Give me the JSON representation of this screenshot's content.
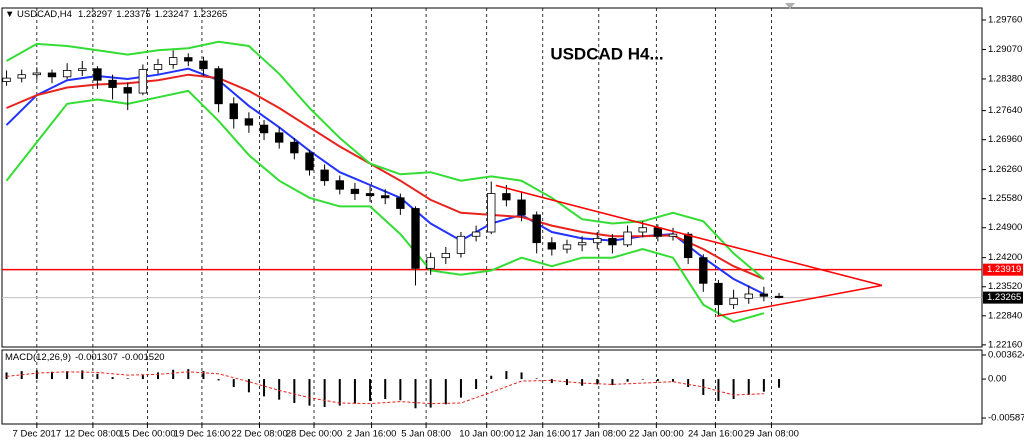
{
  "chart_data": [
    {
      "type": "candlestick",
      "symbol": "USDCAD,H4",
      "annotation": "USDCAD H4...",
      "xlim": [
        -0.3,
        64.4
      ],
      "ylim": [
        1.2211,
        1.3004
      ],
      "yticks": [
        {
          "value": 1.2976,
          "label": "1.29760"
        },
        {
          "value": 1.2907,
          "label": "1.29070"
        },
        {
          "value": 1.2838,
          "label": "1.28380"
        },
        {
          "value": 1.2764,
          "label": "1.27640"
        },
        {
          "value": 1.2696,
          "label": "1.26960"
        },
        {
          "value": 1.2626,
          "label": "1.26260"
        },
        {
          "value": 1.2558,
          "label": "1.25580"
        },
        {
          "value": 1.249,
          "label": "1.24900"
        },
        {
          "value": 1.242,
          "label": "1.24200"
        },
        {
          "value": 1.2352,
          "label": "1.23520"
        },
        {
          "value": 1.2284,
          "label": "1.22840"
        },
        {
          "value": 1.2216,
          "label": "1.22160"
        }
      ],
      "xticks": [
        {
          "value": 2,
          "label": "7 Dec 2017"
        },
        {
          "value": 5.7,
          "label": "12 Dec 08:00"
        },
        {
          "value": 9.3,
          "label": "15 Dec 00:00"
        },
        {
          "value": 12.9,
          "label": "19 Dec 16:00"
        },
        {
          "value": 16.7,
          "label": "22 Dec 08:00"
        },
        {
          "value": 20.3,
          "label": "28 Dec 00:00"
        },
        {
          "value": 24.1,
          "label": "2 Jan 16:00"
        },
        {
          "value": 27.7,
          "label": "5 Jan 08:00"
        },
        {
          "value": 31.7,
          "label": "10 Jan 00:00"
        },
        {
          "value": 35.4,
          "label": "12 Jan 16:00"
        },
        {
          "value": 39.1,
          "label": "17 Jan 08:00"
        },
        {
          "value": 42.9,
          "label": "22 Jan 00:00"
        },
        {
          "value": 46.8,
          "label": "24 Jan 16:00"
        },
        {
          "value": 50.5,
          "label": "29 Jan 08:00"
        }
      ],
      "grid": "vertical",
      "up_color": "#ffffff",
      "down_color": "#000000",
      "ohlc": [
        [
          1.2832,
          1.2858,
          1.2822,
          1.284
        ],
        [
          1.284,
          1.286,
          1.283,
          1.2848
        ],
        [
          1.2848,
          1.2865,
          1.2836,
          1.2852
        ],
        [
          1.2852,
          1.286,
          1.2828,
          1.2843
        ],
        [
          1.2843,
          1.2875,
          1.2838,
          1.2858
        ],
        [
          1.2858,
          1.288,
          1.2845,
          1.2862
        ],
        [
          1.2862,
          1.2868,
          1.2815,
          1.2835
        ],
        [
          1.2835,
          1.2848,
          1.279,
          1.2818
        ],
        [
          1.2818,
          1.283,
          1.2765,
          1.2805
        ],
        [
          1.2805,
          1.2872,
          1.28,
          1.286
        ],
        [
          1.286,
          1.2885,
          1.285,
          1.2872
        ],
        [
          1.2872,
          1.2905,
          1.2862,
          1.2888
        ],
        [
          1.2888,
          1.2898,
          1.2868,
          1.288
        ],
        [
          1.288,
          1.289,
          1.2845,
          1.2862
        ],
        [
          1.2862,
          1.2868,
          1.276,
          1.278
        ],
        [
          1.278,
          1.2795,
          1.2722,
          1.2745
        ],
        [
          1.2745,
          1.276,
          1.2712,
          1.273
        ],
        [
          1.273,
          1.2742,
          1.2695,
          1.2712
        ],
        [
          1.2712,
          1.2725,
          1.2675,
          1.269
        ],
        [
          1.269,
          1.27,
          1.265,
          1.2665
        ],
        [
          1.2665,
          1.2672,
          1.2612,
          1.2625
        ],
        [
          1.2625,
          1.2638,
          1.2588,
          1.26
        ],
        [
          1.26,
          1.2612,
          1.2568,
          1.258
        ],
        [
          1.258,
          1.2595,
          1.2555,
          1.257
        ],
        [
          1.257,
          1.2588,
          1.255,
          1.2565
        ],
        [
          1.2565,
          1.258,
          1.2545,
          1.256
        ],
        [
          1.256,
          1.257,
          1.252,
          1.2535
        ],
        [
          1.2535,
          1.254,
          1.2355,
          1.2395
        ],
        [
          1.2395,
          1.2432,
          1.238,
          1.242
        ],
        [
          1.242,
          1.2445,
          1.2405,
          1.243
        ],
        [
          1.243,
          1.248,
          1.242,
          1.247
        ],
        [
          1.247,
          1.2495,
          1.2458,
          1.248
        ],
        [
          1.248,
          1.2598,
          1.2475,
          1.257
        ],
        [
          1.257,
          1.259,
          1.254,
          1.2555
        ],
        [
          1.2555,
          1.2575,
          1.2505,
          1.252
        ],
        [
          1.252,
          1.2528,
          1.243,
          1.2455
        ],
        [
          1.2455,
          1.2468,
          1.2425,
          1.244
        ],
        [
          1.244,
          1.2462,
          1.243,
          1.245
        ],
        [
          1.245,
          1.247,
          1.2435,
          1.2455
        ],
        [
          1.2455,
          1.248,
          1.244,
          1.2465
        ],
        [
          1.2465,
          1.2475,
          1.243,
          1.245
        ],
        [
          1.245,
          1.2495,
          1.2445,
          1.248
        ],
        [
          1.248,
          1.2505,
          1.2468,
          1.249
        ],
        [
          1.249,
          1.2498,
          1.2458,
          1.247
        ],
        [
          1.247,
          1.249,
          1.246,
          1.2475
        ],
        [
          1.2475,
          1.248,
          1.2405,
          1.242
        ],
        [
          1.242,
          1.2428,
          1.234,
          1.236
        ],
        [
          1.236,
          1.2368,
          1.2285,
          1.231
        ],
        [
          1.231,
          1.2345,
          1.23,
          1.2325
        ],
        [
          1.2325,
          1.2355,
          1.2312,
          1.2335
        ],
        [
          1.2335,
          1.2352,
          1.2318,
          1.23297
        ],
        [
          1.23297,
          1.23375,
          1.23247,
          1.23265
        ]
      ],
      "line_x": [
        0,
        2,
        4,
        6,
        8,
        10,
        12,
        14,
        16,
        18,
        20,
        22,
        24,
        26,
        28,
        30,
        32,
        34,
        36,
        38,
        40,
        42,
        44,
        46,
        48,
        50
      ],
      "series": [
        {
          "color": "#2233ff",
          "values": [
            1.273,
            1.28,
            1.2835,
            1.2845,
            1.2838,
            1.2848,
            1.2862,
            1.2835,
            1.2775,
            1.2725,
            1.267,
            1.262,
            1.259,
            1.256,
            1.25,
            1.246,
            1.25,
            1.252,
            1.248,
            1.2465,
            1.246,
            1.247,
            1.2475,
            1.242,
            1.237,
            1.2335
          ]
        },
        {
          "color": "#e8231d",
          "values": [
            1.277,
            1.28,
            1.2818,
            1.2825,
            1.2828,
            1.2835,
            1.2848,
            1.284,
            1.281,
            1.277,
            1.2725,
            1.268,
            1.264,
            1.26,
            1.2555,
            1.2525,
            1.252,
            1.2515,
            1.2495,
            1.248,
            1.247,
            1.247,
            1.2472,
            1.244,
            1.24,
            1.237
          ]
        },
        {
          "color": "#33dd33",
          "values": [
            1.288,
            1.292,
            1.2915,
            1.2905,
            1.2895,
            1.2905,
            1.291,
            1.2925,
            1.2915,
            1.285,
            1.277,
            1.27,
            1.264,
            1.2615,
            1.262,
            1.26,
            1.261,
            1.26,
            1.256,
            1.251,
            1.25,
            1.2505,
            1.2525,
            1.2505,
            1.243,
            1.237
          ]
        },
        {
          "color": "#33dd33",
          "values": [
            1.26,
            1.269,
            1.278,
            1.279,
            1.278,
            1.2795,
            1.281,
            1.274,
            1.266,
            1.26,
            1.256,
            1.254,
            1.254,
            1.2475,
            1.239,
            1.238,
            1.239,
            1.242,
            1.24,
            1.242,
            1.242,
            1.244,
            1.242,
            1.231,
            1.227,
            1.229
          ]
        }
      ],
      "trendline_color": "#ff0000",
      "trendlines": [
        {
          "x": [
            32.3,
            57.8
          ],
          "values": [
            1.2589,
            1.2355
          ]
        },
        {
          "x": [
            46.9,
            57.8
          ],
          "values": [
            1.2283,
            1.2355
          ]
        }
      ],
      "hlines": [
        {
          "value": 1.23919,
          "color": "#ff0000"
        }
      ],
      "price_line_color": "#c0c0c0"
    },
    {
      "type": "macd",
      "name": "MACD(12,26,9)",
      "readout": [
        "-0.001307",
        "-0.001520"
      ],
      "xlim": [
        -0.3,
        64.4
      ],
      "ylim": [
        -0.00677,
        0.00438
      ],
      "yticks": [
        {
          "value": 0.003624,
          "label": "0.003624"
        },
        {
          "value": 0,
          "label": "0.00"
        },
        {
          "value": -0.005871,
          "label": "-0.005871"
        }
      ],
      "color": "#000000",
      "values": [
        0.001,
        0.0012,
        0.0013,
        0.0011,
        0.0012,
        0.0013,
        0.0008,
        0.0003,
        0.0001,
        0.0006,
        0.001,
        0.0014,
        0.0015,
        0.0012,
        -0.0002,
        -0.0012,
        -0.002,
        -0.0026,
        -0.0031,
        -0.0036,
        -0.004,
        -0.0042,
        -0.004,
        -0.0037,
        -0.0033,
        -0.003,
        -0.0032,
        -0.0044,
        -0.0043,
        -0.0038,
        -0.0028,
        -0.0015,
        0.0005,
        0.0012,
        0.001,
        0.0001,
        -0.0006,
        -0.0009,
        -0.001,
        -0.0008,
        -0.0009,
        -0.0004,
        -0.0001,
        -0.0003,
        -0.0004,
        -0.0012,
        -0.0024,
        -0.0033,
        -0.003,
        -0.0024,
        -0.0019,
        -0.0013
      ],
      "signal_color": "#e8231d",
      "signal_x": [
        0,
        2,
        4,
        6,
        8,
        10,
        12,
        14,
        16,
        18,
        20,
        22,
        24,
        26,
        28,
        30,
        32,
        34,
        36,
        38,
        40,
        42,
        44,
        46,
        48,
        50
      ],
      "signal": [
        0.0004,
        0.0009,
        0.0011,
        0.001,
        0.0006,
        0.0007,
        0.0011,
        0.0008,
        -0.0004,
        -0.0017,
        -0.0028,
        -0.0036,
        -0.0037,
        -0.0034,
        -0.0037,
        -0.0036,
        -0.002,
        -0.0003,
        -0.0002,
        -0.0006,
        -0.0008,
        -0.0006,
        -0.0004,
        -0.0012,
        -0.0024,
        -0.0022
      ]
    }
  ]
}
